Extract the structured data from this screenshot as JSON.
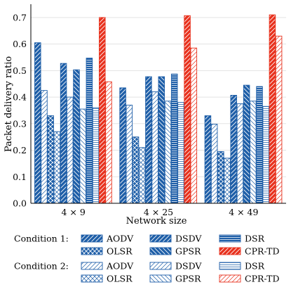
{
  "chart_data": {
    "type": "bar",
    "ylabel": "Packet delivery ratio",
    "xlabel": "Network size",
    "categories": [
      "4 × 9",
      "4 × 25",
      "4 × 49"
    ],
    "ylim": [
      0,
      0.75
    ],
    "yticks": [
      0,
      0.1,
      0.2,
      0.3,
      0.4,
      0.5,
      0.6,
      0.7
    ],
    "grid": true,
    "legend": {
      "placement": "bottom",
      "group_labels": [
        "Condition 1:",
        "Condition 2:"
      ]
    },
    "series": [
      {
        "name": "AODV",
        "condition": 1,
        "pattern": "diag",
        "color": "#1f5fa8",
        "values": [
          0.605,
          0.435,
          0.33
        ]
      },
      {
        "name": "OLSR",
        "condition": 1,
        "pattern": "cross",
        "color": "#1f5fa8",
        "values": [
          0.33,
          0.25,
          0.195
        ]
      },
      {
        "name": "DSDV",
        "condition": 1,
        "pattern": "diag",
        "color": "#1f5fa8",
        "values": [
          0.527,
          0.477,
          0.407
        ]
      },
      {
        "name": "GPSR",
        "condition": 1,
        "pattern": "backdiag",
        "color": "#1f5fa8",
        "values": [
          0.503,
          0.477,
          0.445
        ]
      },
      {
        "name": "DSR",
        "condition": 1,
        "pattern": "horiz",
        "color": "#1f5fa8",
        "values": [
          0.547,
          0.487,
          0.44
        ]
      },
      {
        "name": "CPR-TD",
        "condition": 1,
        "pattern": "diag",
        "color": "#e8321e",
        "values": [
          0.7,
          0.707,
          0.71
        ]
      },
      {
        "name": "AODV",
        "condition": 2,
        "pattern": "diag",
        "color": "#1f5fa8",
        "values": [
          0.425,
          0.37,
          0.298
        ]
      },
      {
        "name": "OLSR",
        "condition": 2,
        "pattern": "cross",
        "color": "#1f5fa8",
        "values": [
          0.27,
          0.21,
          0.17
        ]
      },
      {
        "name": "DSDV",
        "condition": 2,
        "pattern": "diag",
        "color": "#1f5fa8",
        "values": [
          0.4,
          0.42,
          0.375
        ]
      },
      {
        "name": "GPSR",
        "condition": 2,
        "pattern": "backdiag",
        "color": "#1f5fa8",
        "values": [
          0.355,
          0.385,
          0.385
        ]
      },
      {
        "name": "DSR",
        "condition": 2,
        "pattern": "horiz",
        "color": "#1f5fa8",
        "values": [
          0.36,
          0.38,
          0.365
        ]
      },
      {
        "name": "CPR-TD",
        "condition": 2,
        "pattern": "diag",
        "color": "#e8321e",
        "values": [
          0.458,
          0.585,
          0.63
        ]
      }
    ]
  }
}
